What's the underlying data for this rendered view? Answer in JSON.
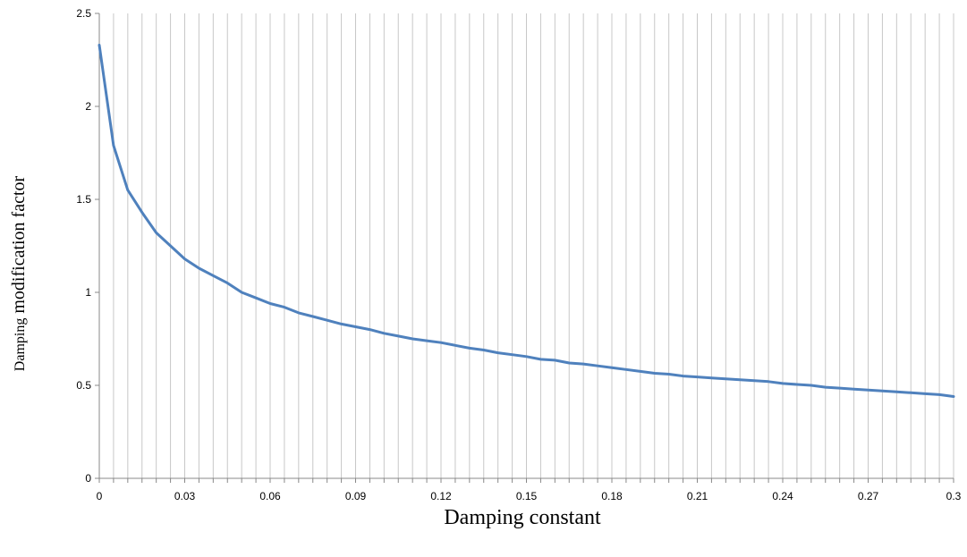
{
  "chart_data": {
    "type": "line",
    "title": "",
    "xlabel": "Damping constant",
    "ylabel_prefix": "Damping",
    "ylabel_rest": " modification factor",
    "xlim": [
      0,
      0.3
    ],
    "ylim": [
      0,
      2.5
    ],
    "x_ticks": [
      "0",
      "0.03",
      "0.06",
      "0.09",
      "0.12",
      "0.15",
      "0.18",
      "0.21",
      "0.24",
      "0.27",
      "0.3"
    ],
    "y_ticks": [
      "0",
      "0.5",
      "1",
      "1.5",
      "2",
      "2.5"
    ],
    "grid": "vertical",
    "series_color": "#4f81bd",
    "x": [
      0,
      0.005,
      0.01,
      0.015,
      0.02,
      0.025,
      0.03,
      0.035,
      0.04,
      0.045,
      0.05,
      0.055,
      0.06,
      0.065,
      0.07,
      0.075,
      0.08,
      0.085,
      0.09,
      0.095,
      0.1,
      0.105,
      0.11,
      0.115,
      0.12,
      0.125,
      0.13,
      0.135,
      0.14,
      0.145,
      0.15,
      0.155,
      0.16,
      0.165,
      0.17,
      0.175,
      0.18,
      0.185,
      0.19,
      0.195,
      0.2,
      0.205,
      0.21,
      0.215,
      0.22,
      0.225,
      0.23,
      0.235,
      0.24,
      0.245,
      0.25,
      0.255,
      0.26,
      0.265,
      0.27,
      0.275,
      0.28,
      0.285,
      0.29,
      0.295,
      0.3
    ],
    "y": [
      2.33,
      1.79,
      1.55,
      1.43,
      1.32,
      1.25,
      1.18,
      1.13,
      1.09,
      1.05,
      1.0,
      0.97,
      0.94,
      0.92,
      0.89,
      0.87,
      0.85,
      0.83,
      0.815,
      0.8,
      0.78,
      0.765,
      0.75,
      0.74,
      0.73,
      0.715,
      0.7,
      0.69,
      0.675,
      0.665,
      0.655,
      0.64,
      0.635,
      0.62,
      0.615,
      0.605,
      0.595,
      0.585,
      0.575,
      0.565,
      0.56,
      0.55,
      0.545,
      0.54,
      0.535,
      0.53,
      0.525,
      0.52,
      0.51,
      0.505,
      0.5,
      0.49,
      0.485,
      0.48,
      0.475,
      0.47,
      0.465,
      0.46,
      0.455,
      0.45,
      0.44
    ]
  }
}
